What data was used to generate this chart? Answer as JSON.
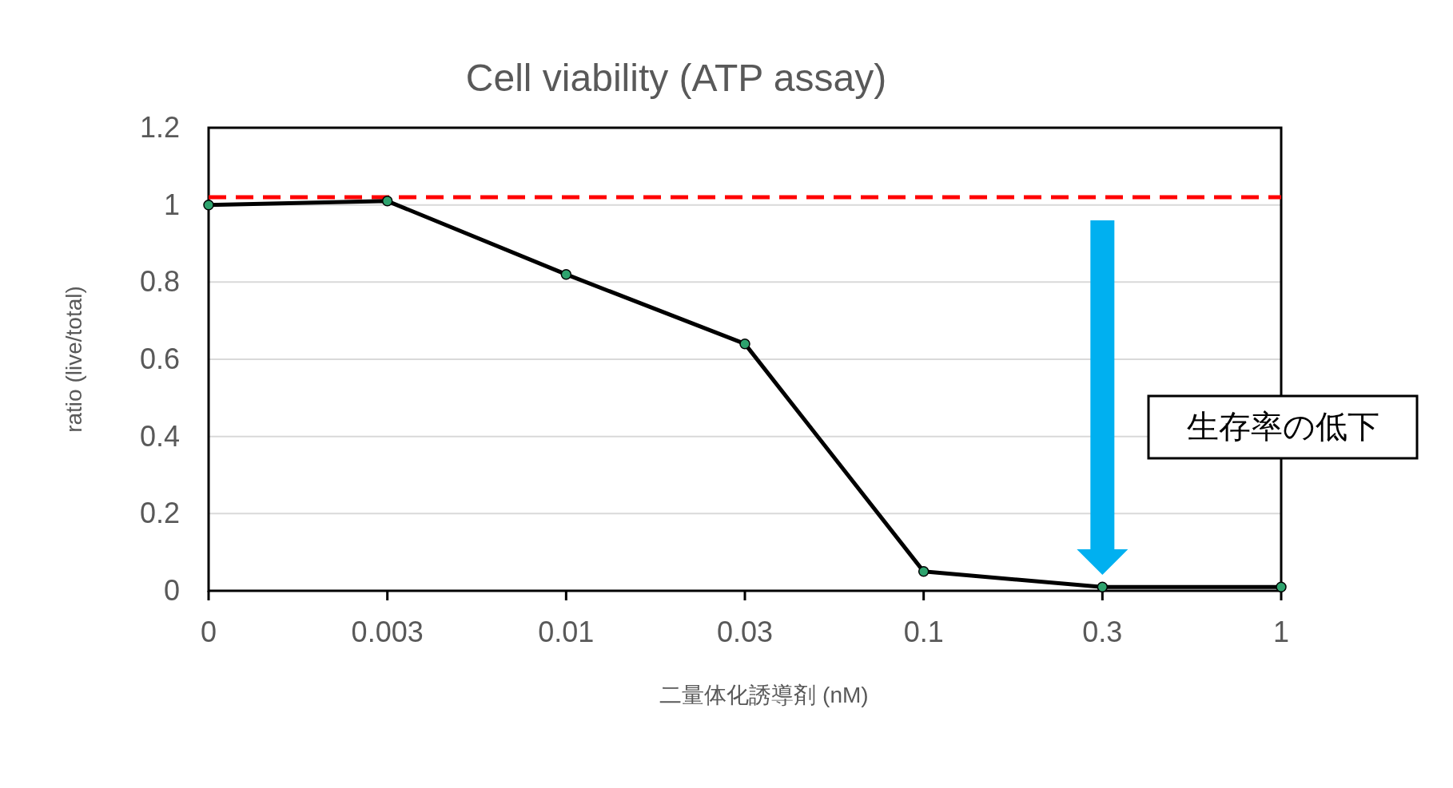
{
  "chart_data": {
    "type": "line",
    "title": "Cell viability (ATP assay)",
    "xlabel": "二量体化誘導剤 (nM)",
    "ylabel": "ratio (live/total)",
    "categories": [
      "0",
      "0.003",
      "0.01",
      "0.03",
      "0.1",
      "0.3",
      "1"
    ],
    "series": [
      {
        "color": "#000000",
        "values": [
          1.0,
          1.01,
          0.82,
          0.64,
          0.05,
          0.01,
          0.01
        ]
      }
    ],
    "ylim": [
      0,
      1.2
    ],
    "yticks": [
      0,
      0.2,
      0.4,
      0.6,
      0.8,
      1,
      1.2
    ],
    "grid": "y",
    "marker": "circle",
    "line_style": "solid",
    "ref_lines": [
      {
        "axis": "y",
        "value": 1.02,
        "color": "#ff0000",
        "line_style": "dashed"
      }
    ],
    "annotations": [
      "生存率の低下"
    ]
  }
}
